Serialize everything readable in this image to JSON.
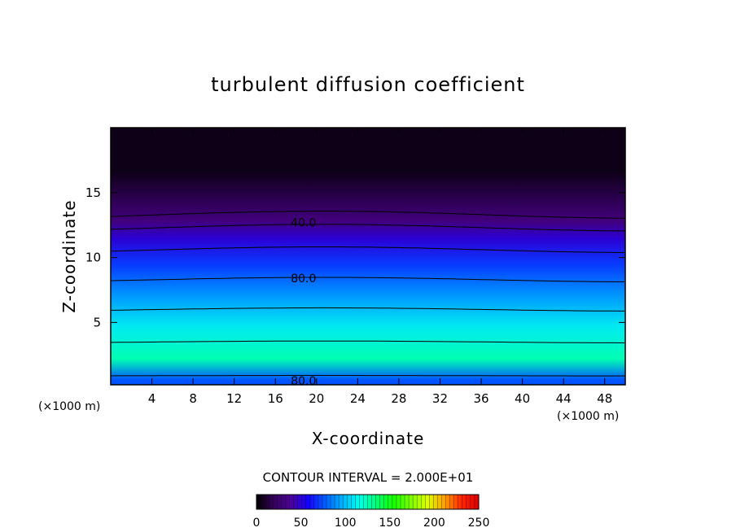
{
  "chart_data": {
    "type": "heatmap",
    "title": "turbulent diffusion coefficient",
    "xlabel": "X-coordinate",
    "ylabel": "Z-coordinate",
    "x_unit_left": "(×1000 m)",
    "x_unit_right": "(×1000 m)",
    "xlim": [
      0,
      50
    ],
    "ylim": [
      0.2,
      20
    ],
    "xticks": [
      4,
      8,
      12,
      16,
      20,
      24,
      28,
      32,
      36,
      40,
      44,
      48
    ],
    "yticks": [
      5,
      10,
      15
    ],
    "contour_interval_text": "CONTOUR INTERVAL = 2.000E+01",
    "contour_interval": 20,
    "colorbar": {
      "range": [
        0,
        250
      ],
      "ticks": [
        0,
        50,
        100,
        150,
        200,
        250
      ]
    },
    "contour_labels": [
      {
        "text": "40.0",
        "x": 17.5,
        "z": 12.7
      },
      {
        "text": "80.0",
        "x": 17.5,
        "z": 8.4
      },
      {
        "text": "80.0",
        "x": 17.5,
        "z": 0.5
      }
    ],
    "bands": [
      {
        "zmin": 13.3,
        "zmax": 20.0,
        "value": 5
      },
      {
        "zmin": 12.3,
        "zmax": 13.3,
        "value": 30
      },
      {
        "zmin": 10.6,
        "zmax": 12.3,
        "value": 50
      },
      {
        "zmin": 8.3,
        "zmax": 10.6,
        "value": 70
      },
      {
        "zmin": 6.0,
        "zmax": 8.3,
        "value": 90
      },
      {
        "zmin": 3.5,
        "zmax": 6.0,
        "value": 110
      },
      {
        "zmin": 0.9,
        "zmax": 3.5,
        "value": 125
      },
      {
        "zmin": 0.2,
        "zmax": 0.9,
        "value": 75
      }
    ]
  },
  "colors": {
    "colormap": [
      "#000000",
      "#35005a",
      "#4d0099",
      "#1500ff",
      "#005cff",
      "#00b0ff",
      "#00ffee",
      "#00ff77",
      "#11ff00",
      "#7aff00",
      "#ddff00",
      "#ffa000",
      "#ff2400",
      "#dd0000"
    ]
  }
}
